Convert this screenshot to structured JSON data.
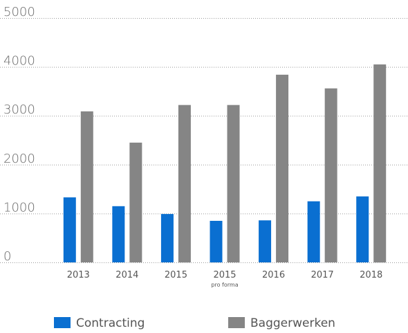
{
  "chart_data": {
    "type": "bar",
    "categories": [
      "2013",
      "2014",
      "2015",
      "2015",
      "2016",
      "2017",
      "2018"
    ],
    "category_sublabels": [
      null,
      null,
      null,
      "pro forma",
      null,
      null,
      null
    ],
    "series": [
      {
        "name": "Contracting",
        "color": "#0a6fd1",
        "values": [
          1330,
          1150,
          990,
          850,
          860,
          1250,
          1350
        ]
      },
      {
        "name": "Baggerwerken",
        "color": "#858585",
        "values": [
          3090,
          2450,
          3220,
          3220,
          3840,
          3560,
          4050
        ]
      }
    ],
    "ylim": [
      0,
      5000
    ],
    "yticks": [
      0,
      1000,
      2000,
      3000,
      4000,
      5000
    ],
    "grid": true
  }
}
